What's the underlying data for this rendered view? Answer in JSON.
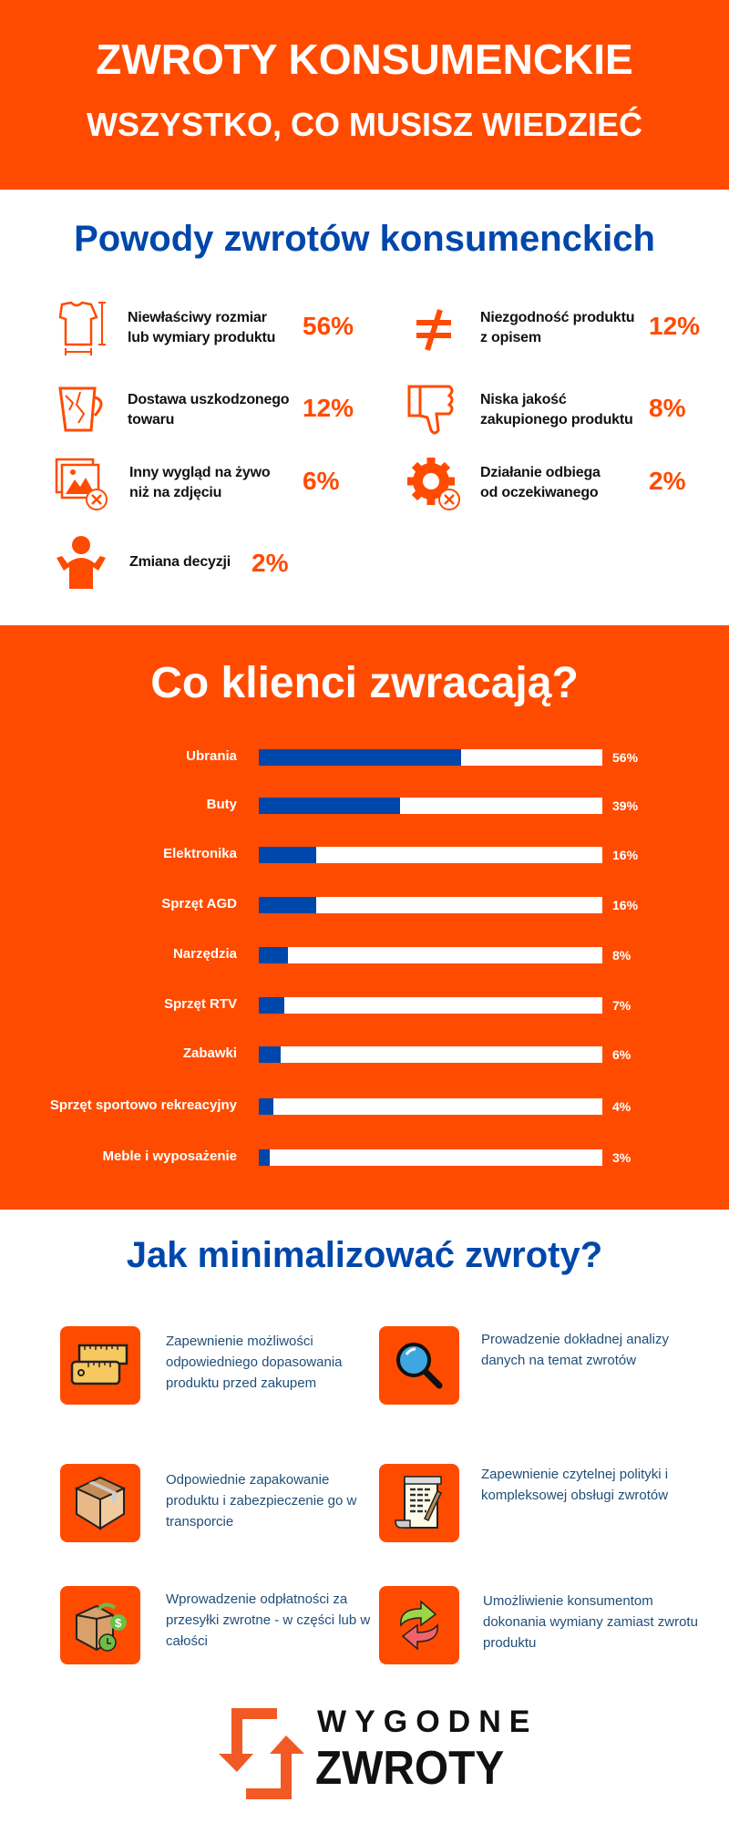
{
  "header": {
    "title": "ZWROTY KONSUMENCKIE",
    "subtitle": "WSZYSTKO, CO MUSISZ WIEDZIEĆ"
  },
  "reasons": {
    "title": "Powody zwrotów konsumenckich",
    "items": [
      {
        "icon": "tshirt-size-icon",
        "label": "Niewłaściwy rozmiar\nlub wymiary produktu",
        "value": "56%"
      },
      {
        "icon": "not-equal-icon",
        "label": "Niezgodność produktu\nz opisem",
        "value": "12%"
      },
      {
        "icon": "broken-mug-icon",
        "label": "Dostawa uszkodzonego\ntowaru",
        "value": "12%"
      },
      {
        "icon": "thumbs-down-icon",
        "label": "Niska jakość\nzakupionego produktu",
        "value": "8%"
      },
      {
        "icon": "image-error-icon",
        "label": "Inny wygląd na żywo\nniż na zdjęciu",
        "value": "6%"
      },
      {
        "icon": "gear-error-icon",
        "label": "Działanie odbiega\nod oczekiwanego",
        "value": "2%"
      },
      {
        "icon": "person-shrug-icon",
        "label": "Zmiana decyzji",
        "value": "2%"
      }
    ]
  },
  "chart_data": {
    "type": "bar",
    "orientation": "horizontal",
    "title": "Co klienci zwracają?",
    "categories": [
      "Ubrania",
      "Buty",
      "Elektronika",
      "Sprzęt AGD",
      "Narzędzia",
      "Sprzęt RTV",
      "Zabawki",
      "Sprzęt sportowo rekreacyjny",
      "Meble i wyposażenie"
    ],
    "values": [
      56,
      39,
      16,
      16,
      8,
      7,
      6,
      4,
      3
    ],
    "value_labels": [
      "56%",
      "39%",
      "16%",
      "16%",
      "8%",
      "7%",
      "6%",
      "4%",
      "3%"
    ],
    "xlim": [
      0,
      95
    ],
    "grid": false,
    "colors": {
      "bar": "#0047ab",
      "track": "#ffffff",
      "background": "#ff4b00"
    }
  },
  "tips": {
    "title": "Jak minimalizować zwroty?",
    "items": [
      {
        "icon": "measuring-tape-icon",
        "text": "Zapewnienie możliwości odpowiedniego dopasowania produktu przed zakupem"
      },
      {
        "icon": "magnifier-icon",
        "text": "Prowadzenie dokładnej analizy danych na temat zwrotów"
      },
      {
        "icon": "package-box-icon",
        "text": "Odpowiednie zapakowanie produktu i zabezpieczenie go w transporcie"
      },
      {
        "icon": "policy-document-icon",
        "text": "Zapewnienie czytelnej polityki i kompleksowej obsługi zwrotów"
      },
      {
        "icon": "paid-return-icon",
        "text": "Wprowadzenie odpłatności za przesyłki zwrotne - w części lub w całości"
      },
      {
        "icon": "exchange-arrows-icon",
        "text": "Umożliwienie konsumentom dokonania wymiany zamiast zwrotu produktu"
      }
    ]
  },
  "logo": {
    "line1": "WYGODNE",
    "line2": "ZWROTY"
  },
  "colors": {
    "orange": "#ff4b00",
    "blue": "#0047ab",
    "tip_text": "#1f4e79"
  }
}
